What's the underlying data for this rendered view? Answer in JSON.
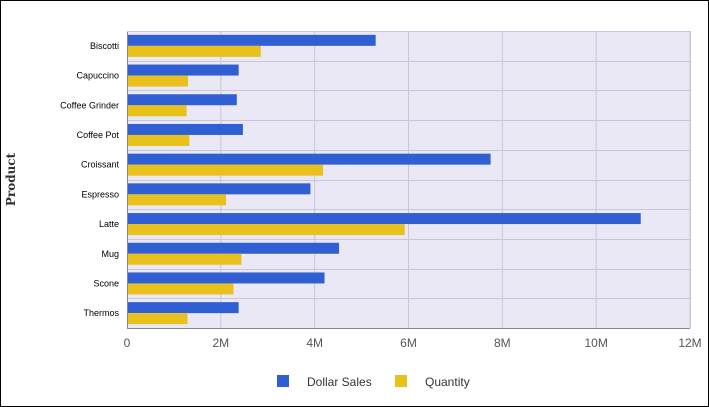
{
  "chart_data": {
    "type": "bar",
    "orientation": "horizontal",
    "categories": [
      "Biscotti",
      "Capuccino",
      "Coffee Grinder",
      "Coffee Pot",
      "Croissant",
      "Espresso",
      "Latte",
      "Mug",
      "Scone",
      "Thermos"
    ],
    "series": [
      {
        "name": "Dollar Sales",
        "color": "#2f5fd3",
        "values": [
          5300000,
          2380000,
          2340000,
          2470000,
          7750000,
          3910000,
          10950000,
          4520000,
          4210000,
          2380000
        ]
      },
      {
        "name": "Quantity",
        "color": "#e8c11c",
        "values": [
          2850000,
          1300000,
          1270000,
          1330000,
          4180000,
          2110000,
          5920000,
          2440000,
          2270000,
          1290000
        ]
      }
    ],
    "xlim": [
      0,
      12000000
    ],
    "xticks": [
      0,
      2000000,
      4000000,
      6000000,
      8000000,
      10000000,
      12000000
    ],
    "xtick_labels": [
      "0",
      "2M",
      "4M",
      "6M",
      "8M",
      "10M",
      "12M"
    ],
    "ylabel": "Product",
    "xlabel": "",
    "grid": true,
    "legend_position": "bottom",
    "plot_background": "#ebe8f5"
  }
}
